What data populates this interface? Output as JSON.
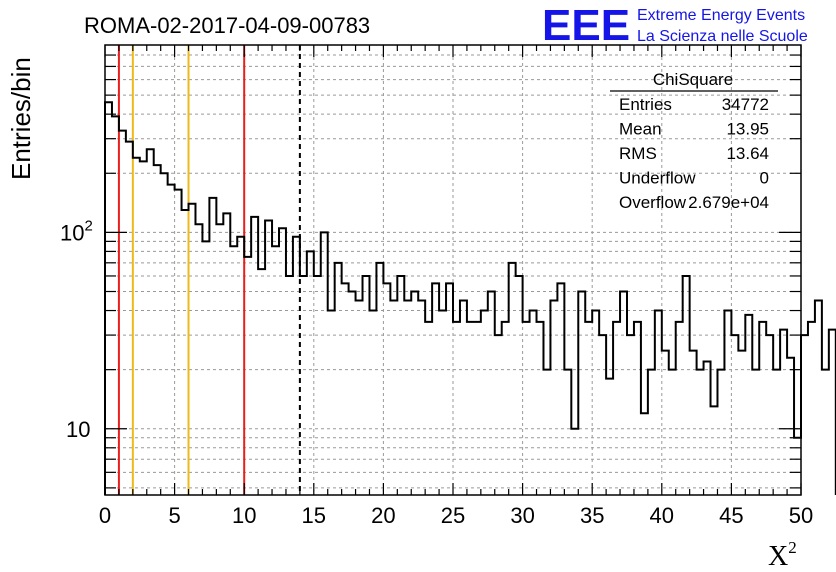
{
  "chart_data": {
    "type": "histogram",
    "title": "ROMA-02-2017-04-09-00783",
    "xlabel": "X",
    "xlabel_sup": "2",
    "ylabel": "Entries/bin",
    "xlim": [
      0,
      50
    ],
    "ylim": [
      4.6,
      900
    ],
    "y_scale": "log",
    "grid": true,
    "bin_width": 0.5,
    "x_ticks": [
      "0",
      "5",
      "10",
      "15",
      "20",
      "25",
      "30",
      "35",
      "40",
      "45",
      "50"
    ],
    "y_tick_labels": [
      {
        "value": 10,
        "label": "10"
      },
      {
        "value": 100,
        "label": "10",
        "sup": "2"
      }
    ],
    "counts": [
      460,
      390,
      330,
      290,
      240,
      230,
      265,
      220,
      200,
      175,
      165,
      130,
      140,
      110,
      90,
      150,
      110,
      125,
      85,
      95,
      75,
      120,
      65,
      115,
      85,
      105,
      60,
      95,
      60,
      80,
      60,
      100,
      40,
      70,
      55,
      50,
      45,
      60,
      40,
      70,
      55,
      45,
      60,
      45,
      50,
      45,
      35,
      55,
      40,
      55,
      35,
      45,
      35,
      35,
      40,
      50,
      30,
      35,
      70,
      60,
      35,
      40,
      35,
      20,
      45,
      55,
      20,
      10,
      50,
      35,
      40,
      30,
      18,
      35,
      50,
      30,
      35,
      12,
      20,
      40,
      25,
      20,
      35,
      60,
      25,
      20,
      22,
      13,
      20,
      40,
      30,
      25,
      38,
      20,
      35,
      30,
      20,
      32,
      23,
      9,
      30,
      35,
      45,
      20,
      32
    ],
    "vertical_lines": [
      {
        "x": 1,
        "color": "#e8201c",
        "style": "solid"
      },
      {
        "x": 2,
        "color": "#f0b818",
        "style": "solid"
      },
      {
        "x": 6,
        "color": "#f0b818",
        "style": "solid"
      },
      {
        "x": 10,
        "color": "#e8201c",
        "style": "solid"
      },
      {
        "x": 14,
        "color": "#000000",
        "style": "dashed"
      }
    ],
    "stats_box": {
      "name": "ChiSquare",
      "rows": [
        {
          "label": "Entries",
          "value": "34772"
        },
        {
          "label": "Mean",
          "value": "13.95"
        },
        {
          "label": "RMS",
          "value": "13.64"
        },
        {
          "label": "Underflow",
          "value": "0"
        },
        {
          "label": "Overflow",
          "value": "2.679e+04"
        }
      ]
    }
  },
  "logo": {
    "mark": "EEE",
    "line1": "Extreme Energy Events",
    "line2": "La Scienza nelle Scuole",
    "color": "#1515e8"
  }
}
